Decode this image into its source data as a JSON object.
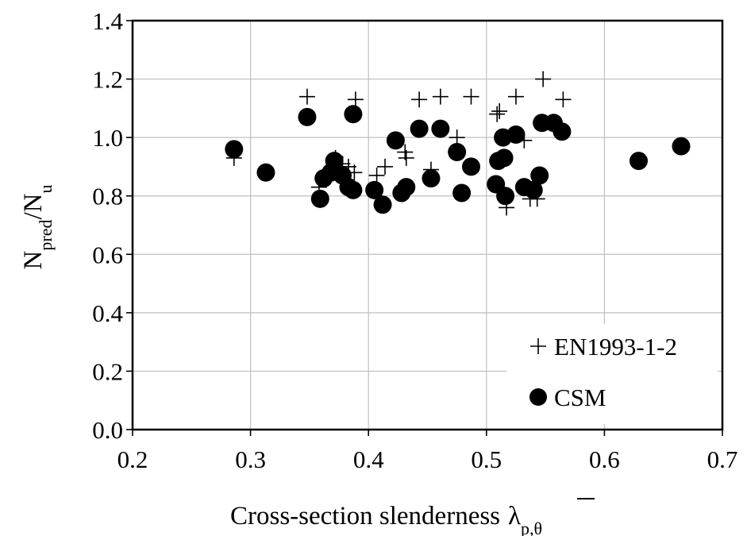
{
  "chart_data": {
    "type": "scatter",
    "title": "",
    "xlabel": "Cross-section slenderness",
    "xlabel_symbol": "λ",
    "xlabel_subscript": "p,θ",
    "ylabel_main_1": "N",
    "ylabel_sub_1": "pred",
    "ylabel_slash": "/N",
    "ylabel_sub_2": "u",
    "xlim": [
      0.2,
      0.7
    ],
    "ylim": [
      0.0,
      1.4
    ],
    "x_ticks": [
      0.2,
      0.3,
      0.4,
      0.5,
      0.6,
      0.7
    ],
    "x_tick_labels": [
      "0.2",
      "0.3",
      "0.4",
      "0.5",
      "0.6",
      "0.7"
    ],
    "y_ticks": [
      0.0,
      0.2,
      0.4,
      0.6,
      0.8,
      1.0,
      1.2,
      1.4
    ],
    "y_tick_labels": [
      "0.0",
      "0.2",
      "0.4",
      "0.6",
      "0.8",
      "1.0",
      "1.2",
      "1.4"
    ],
    "grid": true,
    "legend_position": "bottom-right",
    "series": [
      {
        "name": "EN1993-1-2",
        "marker": "plus",
        "color": "#000000",
        "points": [
          [
            0.286,
            0.93
          ],
          [
            0.348,
            1.14
          ],
          [
            0.389,
            1.13
          ],
          [
            0.358,
            0.83
          ],
          [
            0.372,
            0.93
          ],
          [
            0.378,
            0.91
          ],
          [
            0.383,
            0.9
          ],
          [
            0.388,
            0.88
          ],
          [
            0.407,
            0.87
          ],
          [
            0.414,
            0.9
          ],
          [
            0.431,
            0.95
          ],
          [
            0.432,
            0.93
          ],
          [
            0.443,
            1.13
          ],
          [
            0.453,
            0.89
          ],
          [
            0.461,
            1.14
          ],
          [
            0.475,
            1.0
          ],
          [
            0.487,
            1.14
          ],
          [
            0.509,
            1.08
          ],
          [
            0.511,
            1.09
          ],
          [
            0.517,
            0.76
          ],
          [
            0.525,
            1.14
          ],
          [
            0.532,
            0.99
          ],
          [
            0.537,
            0.79
          ],
          [
            0.543,
            0.79
          ],
          [
            0.548,
            1.2
          ],
          [
            0.565,
            1.13
          ]
        ]
      },
      {
        "name": "CSM",
        "marker": "circle",
        "color": "#000000",
        "points": [
          [
            0.286,
            0.96
          ],
          [
            0.313,
            0.88
          ],
          [
            0.348,
            1.07
          ],
          [
            0.359,
            0.79
          ],
          [
            0.362,
            0.86
          ],
          [
            0.368,
            0.88
          ],
          [
            0.371,
            0.92
          ],
          [
            0.378,
            0.87
          ],
          [
            0.383,
            0.83
          ],
          [
            0.387,
            1.08
          ],
          [
            0.387,
            0.82
          ],
          [
            0.405,
            0.82
          ],
          [
            0.412,
            0.77
          ],
          [
            0.423,
            0.99
          ],
          [
            0.428,
            0.81
          ],
          [
            0.432,
            0.83
          ],
          [
            0.443,
            1.03
          ],
          [
            0.453,
            0.86
          ],
          [
            0.461,
            1.03
          ],
          [
            0.475,
            0.95
          ],
          [
            0.479,
            0.81
          ],
          [
            0.487,
            0.9
          ],
          [
            0.508,
            0.84
          ],
          [
            0.51,
            0.92
          ],
          [
            0.514,
            1.0
          ],
          [
            0.515,
            0.93
          ],
          [
            0.516,
            0.8
          ],
          [
            0.525,
            1.01
          ],
          [
            0.532,
            0.83
          ],
          [
            0.54,
            0.82
          ],
          [
            0.545,
            0.87
          ],
          [
            0.547,
            1.05
          ],
          [
            0.557,
            1.05
          ],
          [
            0.564,
            1.02
          ],
          [
            0.629,
            0.92
          ],
          [
            0.665,
            0.97
          ]
        ]
      }
    ]
  }
}
